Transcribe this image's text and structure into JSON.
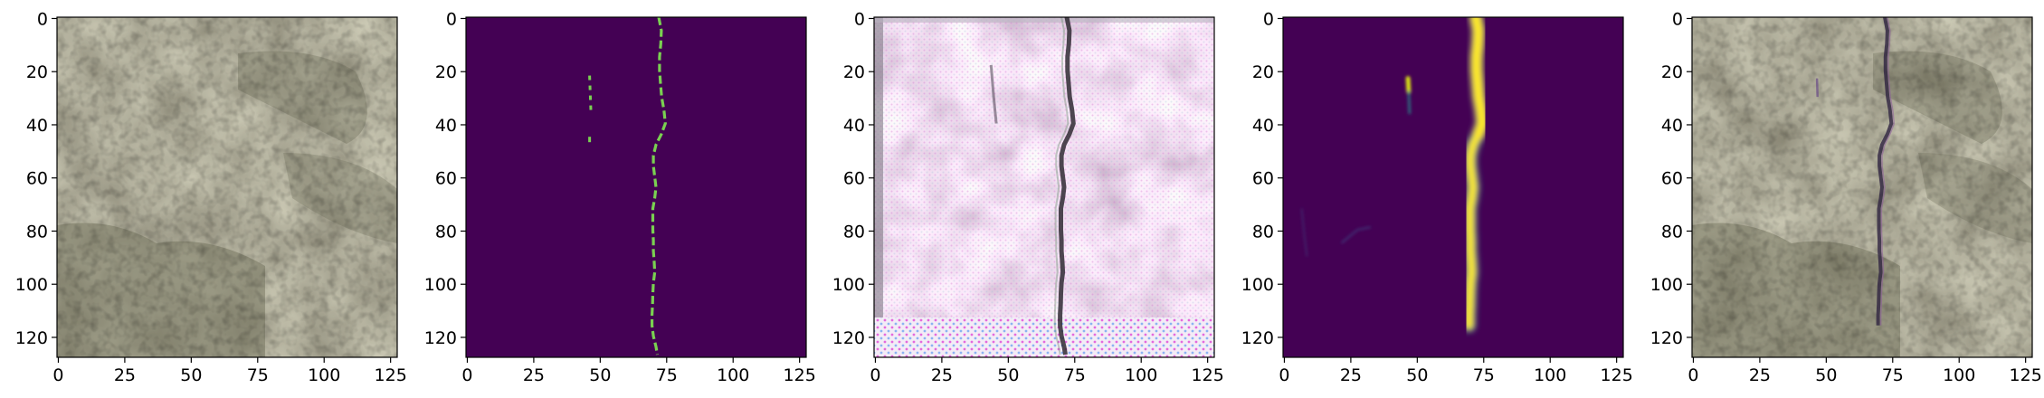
{
  "panels": [
    {
      "id": "original-image",
      "kind": "photo",
      "x_ticks": [
        "0",
        "25",
        "50",
        "75",
        "100",
        "125"
      ],
      "y_ticks": [
        "0",
        "20",
        "40",
        "60",
        "80",
        "100",
        "120"
      ]
    },
    {
      "id": "ground-truth-mask",
      "kind": "mask",
      "x_ticks": [
        "0",
        "25",
        "50",
        "75",
        "100",
        "125"
      ],
      "y_ticks": [
        "0",
        "20",
        "40",
        "60",
        "80",
        "100",
        "120"
      ]
    },
    {
      "id": "reconstructed-image",
      "kind": "reconstruction",
      "x_ticks": [
        "0",
        "25",
        "50",
        "75",
        "100",
        "125"
      ],
      "y_ticks": [
        "0",
        "20",
        "40",
        "60",
        "80",
        "100",
        "120"
      ]
    },
    {
      "id": "predicted-heatmap",
      "kind": "heatmap",
      "x_ticks": [
        "0",
        "25",
        "50",
        "75",
        "100",
        "125"
      ],
      "y_ticks": [
        "0",
        "20",
        "40",
        "60",
        "80",
        "100",
        "120"
      ]
    },
    {
      "id": "overlay-image",
      "kind": "overlay",
      "x_ticks": [
        "0",
        "25",
        "50",
        "75",
        "100",
        "125"
      ],
      "y_ticks": [
        "0",
        "20",
        "40",
        "60",
        "80",
        "100",
        "120"
      ]
    }
  ],
  "crack_path": [
    [
      72.5,
      0
    ],
    [
      73.5,
      5
    ],
    [
      73.3,
      10
    ],
    [
      72.8,
      15
    ],
    [
      72.8,
      20
    ],
    [
      73.2,
      25
    ],
    [
      73.6,
      30
    ],
    [
      74.5,
      35
    ],
    [
      75,
      40
    ],
    [
      73.5,
      44
    ],
    [
      71.5,
      48
    ],
    [
      70.5,
      52
    ],
    [
      70.5,
      56
    ],
    [
      71,
      60
    ],
    [
      71.5,
      64
    ],
    [
      71,
      68
    ],
    [
      70.3,
      72
    ],
    [
      70.3,
      76
    ],
    [
      70.3,
      80
    ],
    [
      70.5,
      84
    ],
    [
      70.5,
      88
    ],
    [
      70.8,
      92
    ],
    [
      71,
      96
    ],
    [
      70.5,
      100
    ],
    [
      70.3,
      104
    ],
    [
      70.2,
      108
    ],
    [
      70,
      112
    ],
    [
      70,
      116
    ],
    [
      70.5,
      120
    ],
    [
      71.5,
      124
    ],
    [
      72,
      127
    ]
  ],
  "secondary_segment": [
    [
      46.5,
      22
    ],
    [
      47,
      36
    ]
  ],
  "colors": {
    "mask_background": "#440154",
    "mask_line": "#7ad151",
    "heat_mid": "#21918c",
    "heat_high": "#fde725",
    "heat_peak": "#d8e219",
    "photo_base": "#9b9683",
    "photo_dark": "#6b6a55",
    "recon_pink": "#e3a6df",
    "recon_light": "#f4e9f2"
  },
  "image_size": 128
}
